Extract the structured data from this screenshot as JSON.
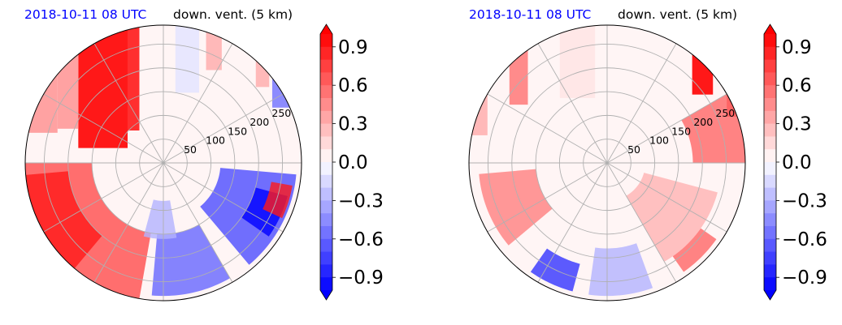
{
  "chart_data": [
    {
      "type": "polar-contour",
      "title_date": "2018-10-11 08 UTC",
      "title_variable": "down. vent. (5 km)",
      "radial_ticks": [
        50,
        100,
        150,
        200,
        250
      ],
      "angular_grid_step_deg": 30,
      "colorbar": {
        "min": -1.0,
        "max": 1.0,
        "levels": 21,
        "extend": "both",
        "ticks": [
          0.9,
          0.6,
          0.3,
          0.0,
          -0.3,
          -0.6,
          -0.9
        ],
        "tick_labels": [
          "0.9",
          "0.6",
          "0.3",
          "0.0",
          "−0.3",
          "−0.6",
          "−0.9"
        ],
        "colormap": "bwr"
      },
      "features": [
        {
          "kind": "streak",
          "a0": 105,
          "a1": 128,
          "r0": 35,
          "r1": 290,
          "value": 1.0
        },
        {
          "kind": "streak",
          "a0": 100,
          "a1": 106,
          "r0": 70,
          "r1": 290,
          "value": 0.9
        },
        {
          "kind": "streak",
          "a0": 128,
          "a1": 140,
          "r0": 100,
          "r1": 290,
          "value": 0.4
        },
        {
          "kind": "streak",
          "a0": 140,
          "a1": 170,
          "r0": 150,
          "r1": 290,
          "value": 0.4
        },
        {
          "kind": "streak",
          "a0": 65,
          "a1": 72,
          "r0": 210,
          "r1": 290,
          "value": 0.3
        },
        {
          "kind": "streak",
          "a0": 40,
          "a1": 48,
          "r0": 230,
          "r1": 290,
          "value": 0.35
        },
        {
          "kind": "streak",
          "a0": 20,
          "a1": 38,
          "r0": 240,
          "r1": 290,
          "value": -0.5
        },
        {
          "kind": "streak",
          "a0": 75,
          "a1": 85,
          "r0": 150,
          "r1": 290,
          "value": -0.15
        },
        {
          "kind": "sector",
          "a0": 180,
          "a1": 260,
          "r0": 150,
          "r1": 290,
          "value": 0.7
        },
        {
          "kind": "sector",
          "a0": 185,
          "a1": 230,
          "r0": 200,
          "r1": 290,
          "value": 0.85
        },
        {
          "kind": "sector",
          "a0": 265,
          "a1": 300,
          "r0": 150,
          "r1": 280,
          "value": -0.6
        },
        {
          "kind": "sector",
          "a0": 310,
          "a1": 355,
          "r0": 120,
          "r1": 280,
          "value": -0.7
        },
        {
          "kind": "sector",
          "a0": 325,
          "a1": 345,
          "r0": 200,
          "r1": 270,
          "value": -1.0
        },
        {
          "kind": "sector",
          "a0": 335,
          "a1": 350,
          "r0": 230,
          "r1": 275,
          "value": 0.9
        },
        {
          "kind": "sector",
          "a0": 255,
          "a1": 280,
          "r0": 80,
          "r1": 160,
          "value": -0.3
        }
      ]
    },
    {
      "type": "polar-contour",
      "title_date": "2018-10-11 08 UTC",
      "title_variable": "down. vent. (5 km)",
      "radial_ticks": [
        50,
        100,
        150,
        200,
        250
      ],
      "angular_grid_step_deg": 30,
      "colorbar": {
        "min": -1.0,
        "max": 1.0,
        "levels": 21,
        "extend": "both",
        "ticks": [
          0.9,
          0.6,
          0.3,
          0.0,
          -0.3,
          -0.6,
          -0.9
        ],
        "tick_labels": [
          "0.9",
          "0.6",
          "0.3",
          "0.0",
          "−0.3",
          "−0.6",
          "−0.9"
        ],
        "colormap": "bwr"
      },
      "features": [
        {
          "kind": "streak",
          "a0": 40,
          "a1": 52,
          "r0": 200,
          "r1": 290,
          "value": 1.0
        },
        {
          "kind": "streak",
          "a0": 20,
          "a1": 30,
          "r0": 230,
          "r1": 290,
          "value": 0.7
        },
        {
          "kind": "streak",
          "a0": 125,
          "a1": 135,
          "r0": 160,
          "r1": 290,
          "value": 0.5
        },
        {
          "kind": "streak",
          "a0": 150,
          "a1": 170,
          "r0": 170,
          "r1": 290,
          "value": 0.35
        },
        {
          "kind": "streak",
          "a0": 95,
          "a1": 110,
          "r0": 140,
          "r1": 290,
          "value": 0.15
        },
        {
          "kind": "sector",
          "a0": 0,
          "a1": 30,
          "r0": 180,
          "r1": 290,
          "value": 0.6
        },
        {
          "kind": "sector",
          "a0": 185,
          "a1": 220,
          "r0": 150,
          "r1": 270,
          "value": 0.45
        },
        {
          "kind": "sector",
          "a0": 235,
          "a1": 255,
          "r0": 220,
          "r1": 280,
          "value": -0.8
        },
        {
          "kind": "sector",
          "a0": 300,
          "a1": 345,
          "r0": 80,
          "r1": 240,
          "value": 0.35
        },
        {
          "kind": "sector",
          "a0": 262,
          "a1": 290,
          "r0": 180,
          "r1": 280,
          "value": -0.3
        },
        {
          "kind": "sector",
          "a0": 305,
          "a1": 325,
          "r0": 240,
          "r1": 280,
          "value": 0.55
        }
      ]
    }
  ]
}
